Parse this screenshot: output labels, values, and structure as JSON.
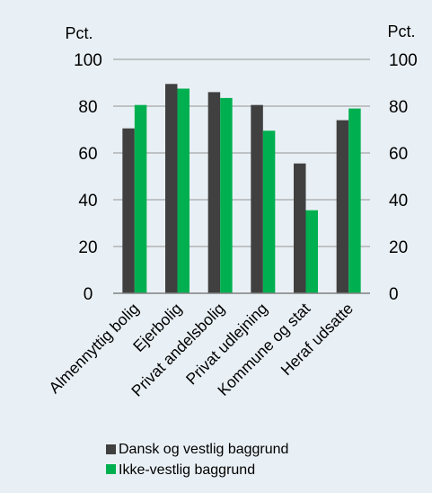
{
  "chart_data": {
    "type": "bar",
    "categories": [
      "Almennyttig bolig",
      "Ejerbolig",
      "Privat andelsbolig",
      "Privat udlejning",
      "Kommune og stat",
      "Heraf udsatte"
    ],
    "series": [
      {
        "name": "Dansk og vestlig baggrund",
        "color": "#404040",
        "values": [
          70.5,
          89.5,
          86,
          80.5,
          55.5,
          74
        ]
      },
      {
        "name": "Ikke-vestlig baggrund",
        "color": "#00b050",
        "values": [
          80.5,
          87.5,
          83.5,
          69.5,
          35.5,
          79
        ]
      }
    ],
    "title": "",
    "ylabel_left": "Pct.",
    "ylabel_right": "Pct.",
    "ylim": [
      0,
      100
    ],
    "yticks": [
      0,
      20,
      40,
      60,
      80,
      100
    ],
    "ytick_labels": [
      "0",
      "20",
      "40",
      "60",
      "80",
      "100"
    ],
    "grid": true,
    "legend_position": "bottom",
    "background_color": "#e9f0f5",
    "grid_color": "#a6a6a6"
  }
}
